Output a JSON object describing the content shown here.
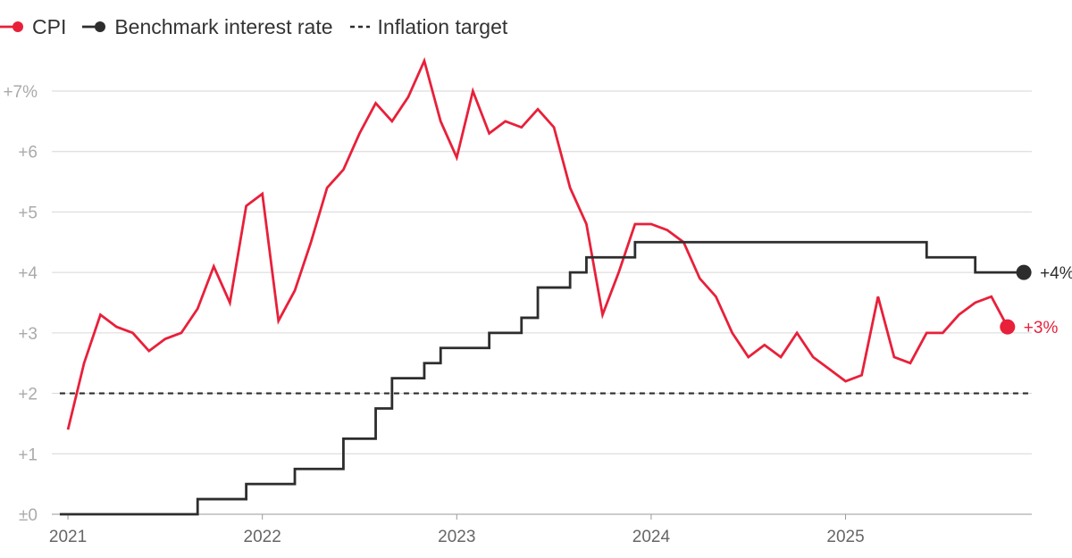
{
  "chart_data": {
    "type": "line",
    "title": "",
    "xlabel": "",
    "ylabel": "",
    "ylim": [
      0,
      7
    ],
    "xlim": [
      2020.917,
      2025.958
    ],
    "y_ticks": [
      {
        "value": 0,
        "label": "±0"
      },
      {
        "value": 1,
        "label": "+1"
      },
      {
        "value": 2,
        "label": "+2"
      },
      {
        "value": 3,
        "label": "+3"
      },
      {
        "value": 4,
        "label": "+4"
      },
      {
        "value": 5,
        "label": "+5"
      },
      {
        "value": 6,
        "label": "+6"
      },
      {
        "value": 7,
        "label": "+7%"
      }
    ],
    "x_ticks": [
      {
        "value": 2021,
        "label": "2021"
      },
      {
        "value": 2022,
        "label": "2022"
      },
      {
        "value": 2023,
        "label": "2023"
      },
      {
        "value": 2024,
        "label": "2024"
      },
      {
        "value": 2025,
        "label": "2025"
      }
    ],
    "legend": [
      {
        "name": "CPI",
        "style": "line-dot",
        "color": "#e8203a"
      },
      {
        "name": "Benchmark interest rate",
        "style": "line-dot",
        "color": "#2d2d2d"
      },
      {
        "name": "Inflation target",
        "style": "dashed",
        "color": "#2d2d2d"
      }
    ],
    "series": [
      {
        "name": "CPI",
        "kind": "line",
        "color": "#e8203a",
        "end_label": "+3%",
        "x": [
          2021.0,
          2021.083,
          2021.167,
          2021.25,
          2021.333,
          2021.417,
          2021.5,
          2021.583,
          2021.667,
          2021.75,
          2021.833,
          2021.917,
          2022.0,
          2022.083,
          2022.167,
          2022.25,
          2022.333,
          2022.417,
          2022.5,
          2022.583,
          2022.667,
          2022.75,
          2022.833,
          2022.917,
          2023.0,
          2023.083,
          2023.167,
          2023.25,
          2023.333,
          2023.417,
          2023.5,
          2023.583,
          2023.667,
          2023.75,
          2023.833,
          2023.917,
          2024.0,
          2024.083,
          2024.167,
          2024.25,
          2024.333,
          2024.417,
          2024.5,
          2024.583,
          2024.667,
          2024.75,
          2024.833,
          2024.917,
          2025.0,
          2025.083,
          2025.167,
          2025.25,
          2025.333,
          2025.417,
          2025.5,
          2025.583,
          2025.667,
          2025.75,
          2025.833
        ],
        "values": [
          1.4,
          2.5,
          3.3,
          3.1,
          3.0,
          2.7,
          2.9,
          3.0,
          3.4,
          4.1,
          3.5,
          5.1,
          5.3,
          3.2,
          3.7,
          4.5,
          5.4,
          5.7,
          6.3,
          6.8,
          6.5,
          6.9,
          7.5,
          6.5,
          5.9,
          7.0,
          6.3,
          6.5,
          6.4,
          6.7,
          6.4,
          5.4,
          4.8,
          3.3,
          4.0,
          4.8,
          4.8,
          4.7,
          4.5,
          3.9,
          3.6,
          3.0,
          2.6,
          2.8,
          2.6,
          3.0,
          2.6,
          2.4,
          2.2,
          2.3,
          3.6,
          2.6,
          2.5,
          3.0,
          3.0,
          3.3,
          3.5,
          3.6,
          3.1
        ]
      },
      {
        "name": "Benchmark interest rate",
        "kind": "step",
        "color": "#2d2d2d",
        "end_label": "+4%",
        "x": [
          2020.958,
          2021.667,
          2021.917,
          2022.167,
          2022.417,
          2022.583,
          2022.667,
          2022.833,
          2022.917,
          2023.167,
          2023.333,
          2023.417,
          2023.583,
          2023.667,
          2023.917,
          2025.417,
          2025.667,
          2025.917
        ],
        "values": [
          0,
          0.25,
          0.5,
          0.75,
          1.25,
          1.75,
          2.25,
          2.5,
          2.75,
          3.0,
          3.25,
          3.75,
          4.0,
          4.25,
          4.5,
          4.25,
          4.0,
          4.0
        ]
      },
      {
        "name": "Inflation target",
        "kind": "dashed",
        "color": "#2d2d2d",
        "x": [
          2020.958,
          2025.958
        ],
        "values": [
          2,
          2
        ]
      }
    ]
  }
}
